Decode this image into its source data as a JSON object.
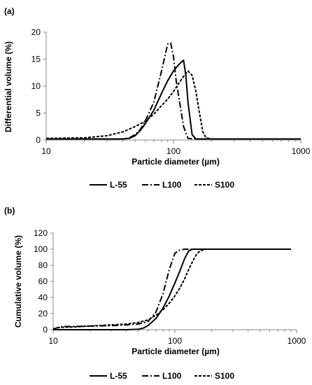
{
  "chart_data": [
    {
      "panel_label": "(a)",
      "type": "line",
      "xscale": "log",
      "xlim": [
        10,
        1000
      ],
      "ylim": [
        0,
        20
      ],
      "xticks": [
        10,
        100,
        1000
      ],
      "xtick_labels": [
        "10",
        "100",
        "1000"
      ],
      "yticks": [
        0,
        5,
        10,
        15,
        20
      ],
      "ytick_labels": [
        "0",
        "5",
        "10",
        "15",
        "20"
      ],
      "xlabel": "Particle diameter (µm)",
      "ylabel": "Differential volume (%)",
      "grid": false,
      "legend_position": "bottom",
      "series": [
        {
          "name": "L-55",
          "dash": "solid",
          "x": [
            10,
            30,
            40,
            45,
            50,
            55,
            60,
            70,
            80,
            90,
            100,
            110,
            120,
            125,
            130,
            140,
            150,
            170,
            200,
            1000
          ],
          "y": [
            0.2,
            0.2,
            0.2,
            0.3,
            0.8,
            1.8,
            3.0,
            5.5,
            8.5,
            11.0,
            12.8,
            14.0,
            14.8,
            12.0,
            7.0,
            1.0,
            0.2,
            0.2,
            0.2,
            0.2
          ]
        },
        {
          "name": "L100",
          "dash": "dashdot",
          "x": [
            10,
            30,
            40,
            45,
            50,
            55,
            60,
            70,
            80,
            90,
            95,
            100,
            105,
            110,
            120,
            130,
            150,
            200,
            1000
          ],
          "y": [
            0.2,
            0.2,
            0.2,
            0.4,
            1.0,
            2.0,
            3.5,
            7.0,
            12.5,
            17.8,
            18.0,
            15.5,
            11.0,
            8.0,
            2.5,
            0.3,
            0.2,
            0.2,
            0.2
          ]
        },
        {
          "name": "S100",
          "dash": "dashed",
          "x": [
            10,
            20,
            30,
            40,
            50,
            60,
            70,
            80,
            90,
            100,
            110,
            120,
            130,
            140,
            150,
            160,
            170,
            180,
            200,
            1000
          ],
          "y": [
            0.3,
            0.4,
            0.8,
            1.5,
            2.5,
            3.5,
            4.8,
            6.3,
            7.6,
            9.0,
            10.5,
            11.8,
            12.8,
            12.0,
            9.0,
            5.0,
            1.5,
            0.4,
            0.2,
            0.2
          ]
        }
      ]
    },
    {
      "panel_label": "(b)",
      "type": "line",
      "xscale": "log",
      "xlim": [
        10,
        1000
      ],
      "ylim": [
        0,
        120
      ],
      "xticks": [
        10,
        100,
        1000
      ],
      "xtick_labels": [
        "10",
        "100",
        "1000"
      ],
      "yticks": [
        0,
        20,
        40,
        60,
        80,
        100,
        120
      ],
      "ytick_labels": [
        "0",
        "20",
        "40",
        "60",
        "80",
        "100",
        "120"
      ],
      "xlabel": "Particle diameter (µm)",
      "ylabel": "Cumulative volume (%)",
      "grid": false,
      "legend_position": "bottom",
      "series": [
        {
          "name": "L-55",
          "dash": "solid",
          "x": [
            10,
            40,
            50,
            55,
            60,
            70,
            80,
            90,
            100,
            110,
            120,
            130,
            140,
            900
          ],
          "y": [
            0,
            0,
            0.5,
            2,
            5,
            14,
            27,
            42,
            58,
            73,
            88,
            98,
            100,
            100
          ]
        },
        {
          "name": "L100",
          "dash": "dashdot",
          "x": [
            10,
            11,
            12,
            15,
            20,
            30,
            40,
            50,
            60,
            70,
            80,
            90,
            100,
            110,
            120,
            900
          ],
          "y": [
            0,
            3,
            4,
            4,
            4.5,
            5,
            6,
            7,
            10,
            22,
            45,
            75,
            95,
            99,
            100,
            100
          ]
        },
        {
          "name": "S100",
          "dash": "dashed",
          "x": [
            10,
            11,
            12,
            15,
            20,
            30,
            40,
            50,
            60,
            70,
            80,
            90,
            100,
            110,
            120,
            130,
            140,
            150,
            160,
            180,
            900
          ],
          "y": [
            1,
            2.5,
            3,
            3.5,
            4.5,
            6,
            7,
            9,
            12,
            18,
            25,
            33,
            42,
            52,
            63,
            75,
            85,
            93,
            98,
            100,
            100
          ]
        }
      ]
    }
  ]
}
